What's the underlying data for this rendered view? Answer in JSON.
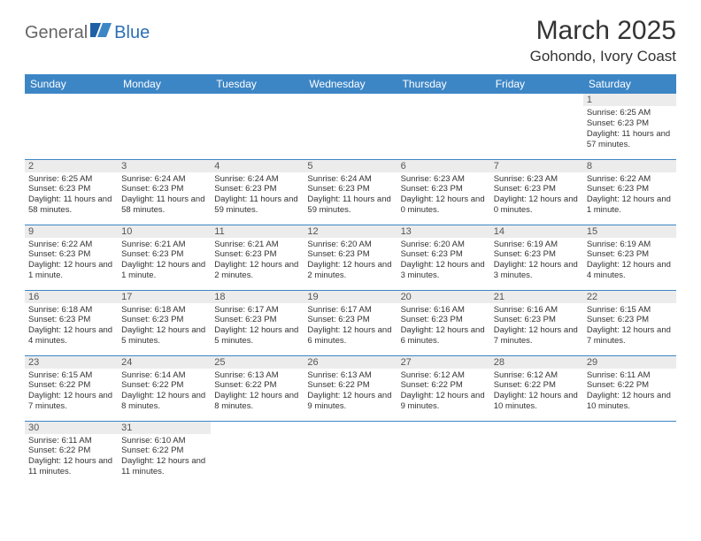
{
  "brand": {
    "general": "General",
    "blue": "Blue"
  },
  "title": "March 2025",
  "location": "Gohondo, Ivory Coast",
  "header_bg": "#3d86c6",
  "header_text_color": "#ffffff",
  "daynum_bg": "#ececec",
  "rule_color": "#3d86c6",
  "columns": [
    "Sunday",
    "Monday",
    "Tuesday",
    "Wednesday",
    "Thursday",
    "Friday",
    "Saturday"
  ],
  "weeks": [
    [
      null,
      null,
      null,
      null,
      null,
      null,
      {
        "n": "1",
        "sr": "6:25 AM",
        "ss": "6:23 PM",
        "dl": "11 hours and 57 minutes."
      }
    ],
    [
      {
        "n": "2",
        "sr": "6:25 AM",
        "ss": "6:23 PM",
        "dl": "11 hours and 58 minutes."
      },
      {
        "n": "3",
        "sr": "6:24 AM",
        "ss": "6:23 PM",
        "dl": "11 hours and 58 minutes."
      },
      {
        "n": "4",
        "sr": "6:24 AM",
        "ss": "6:23 PM",
        "dl": "11 hours and 59 minutes."
      },
      {
        "n": "5",
        "sr": "6:24 AM",
        "ss": "6:23 PM",
        "dl": "11 hours and 59 minutes."
      },
      {
        "n": "6",
        "sr": "6:23 AM",
        "ss": "6:23 PM",
        "dl": "12 hours and 0 minutes."
      },
      {
        "n": "7",
        "sr": "6:23 AM",
        "ss": "6:23 PM",
        "dl": "12 hours and 0 minutes."
      },
      {
        "n": "8",
        "sr": "6:22 AM",
        "ss": "6:23 PM",
        "dl": "12 hours and 1 minute."
      }
    ],
    [
      {
        "n": "9",
        "sr": "6:22 AM",
        "ss": "6:23 PM",
        "dl": "12 hours and 1 minute."
      },
      {
        "n": "10",
        "sr": "6:21 AM",
        "ss": "6:23 PM",
        "dl": "12 hours and 1 minute."
      },
      {
        "n": "11",
        "sr": "6:21 AM",
        "ss": "6:23 PM",
        "dl": "12 hours and 2 minutes."
      },
      {
        "n": "12",
        "sr": "6:20 AM",
        "ss": "6:23 PM",
        "dl": "12 hours and 2 minutes."
      },
      {
        "n": "13",
        "sr": "6:20 AM",
        "ss": "6:23 PM",
        "dl": "12 hours and 3 minutes."
      },
      {
        "n": "14",
        "sr": "6:19 AM",
        "ss": "6:23 PM",
        "dl": "12 hours and 3 minutes."
      },
      {
        "n": "15",
        "sr": "6:19 AM",
        "ss": "6:23 PM",
        "dl": "12 hours and 4 minutes."
      }
    ],
    [
      {
        "n": "16",
        "sr": "6:18 AM",
        "ss": "6:23 PM",
        "dl": "12 hours and 4 minutes."
      },
      {
        "n": "17",
        "sr": "6:18 AM",
        "ss": "6:23 PM",
        "dl": "12 hours and 5 minutes."
      },
      {
        "n": "18",
        "sr": "6:17 AM",
        "ss": "6:23 PM",
        "dl": "12 hours and 5 minutes."
      },
      {
        "n": "19",
        "sr": "6:17 AM",
        "ss": "6:23 PM",
        "dl": "12 hours and 6 minutes."
      },
      {
        "n": "20",
        "sr": "6:16 AM",
        "ss": "6:23 PM",
        "dl": "12 hours and 6 minutes."
      },
      {
        "n": "21",
        "sr": "6:16 AM",
        "ss": "6:23 PM",
        "dl": "12 hours and 7 minutes."
      },
      {
        "n": "22",
        "sr": "6:15 AM",
        "ss": "6:23 PM",
        "dl": "12 hours and 7 minutes."
      }
    ],
    [
      {
        "n": "23",
        "sr": "6:15 AM",
        "ss": "6:22 PM",
        "dl": "12 hours and 7 minutes."
      },
      {
        "n": "24",
        "sr": "6:14 AM",
        "ss": "6:22 PM",
        "dl": "12 hours and 8 minutes."
      },
      {
        "n": "25",
        "sr": "6:13 AM",
        "ss": "6:22 PM",
        "dl": "12 hours and 8 minutes."
      },
      {
        "n": "26",
        "sr": "6:13 AM",
        "ss": "6:22 PM",
        "dl": "12 hours and 9 minutes."
      },
      {
        "n": "27",
        "sr": "6:12 AM",
        "ss": "6:22 PM",
        "dl": "12 hours and 9 minutes."
      },
      {
        "n": "28",
        "sr": "6:12 AM",
        "ss": "6:22 PM",
        "dl": "12 hours and 10 minutes."
      },
      {
        "n": "29",
        "sr": "6:11 AM",
        "ss": "6:22 PM",
        "dl": "12 hours and 10 minutes."
      }
    ],
    [
      {
        "n": "30",
        "sr": "6:11 AM",
        "ss": "6:22 PM",
        "dl": "12 hours and 11 minutes."
      },
      {
        "n": "31",
        "sr": "6:10 AM",
        "ss": "6:22 PM",
        "dl": "12 hours and 11 minutes."
      },
      null,
      null,
      null,
      null,
      null
    ]
  ],
  "labels": {
    "sunrise": "Sunrise:",
    "sunset": "Sunset:",
    "daylight": "Daylight:"
  }
}
